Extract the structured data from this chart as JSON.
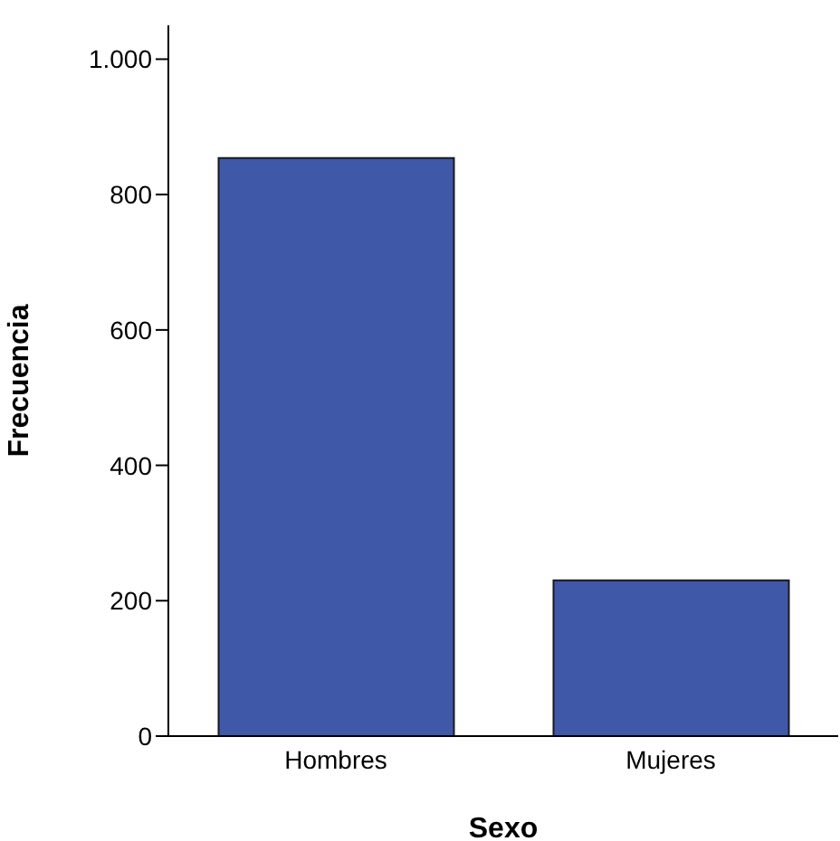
{
  "chart_data": {
    "type": "bar",
    "xlabel": "Sexo",
    "ylabel": "Frecuencia",
    "categories": [
      "Hombres",
      "Mujeres"
    ],
    "values": [
      854,
      230
    ],
    "color": "#3f58a8",
    "ylim": [
      0,
      1050
    ],
    "yticks": [
      0,
      200,
      400,
      600,
      800,
      {
        "value": 1000,
        "label": "1.000"
      }
    ],
    "grid": false,
    "legend": false
  }
}
